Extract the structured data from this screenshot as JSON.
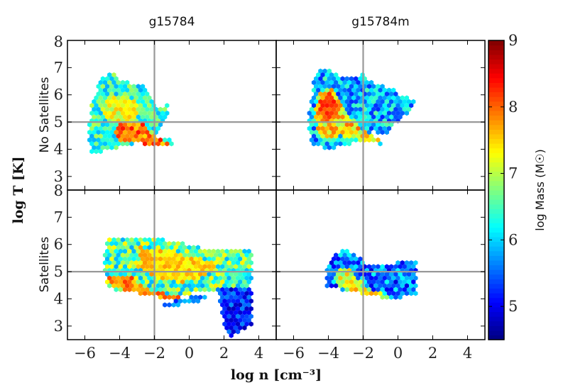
{
  "chart_data": {
    "type": "hexbin",
    "column_titles": [
      "g15784",
      "g15784m"
    ],
    "row_labels": [
      "No Satellites",
      "Satellites"
    ],
    "xlabel": "log n [cm⁻³]",
    "ylabel": "log T [K]",
    "colorbar_label": "log Mass (M☉)",
    "xlim": [
      -7,
      5
    ],
    "ylim": [
      2.5,
      8
    ],
    "x_ticks": [
      -6,
      -4,
      -2,
      0,
      2,
      4
    ],
    "x_tick_labels": [
      "−6",
      "−4",
      "−2",
      "0",
      "2",
      "4"
    ],
    "y_ticks": [
      3,
      4,
      5,
      6,
      7,
      8
    ],
    "y_tick_labels": [
      "3",
      "4",
      "5",
      "6",
      "7",
      "8"
    ],
    "colorbar_range": [
      4.5,
      9
    ],
    "colorbar_ticks": [
      5,
      6,
      7,
      8,
      9
    ],
    "colorbar_tick_labels": [
      "5",
      "6",
      "7",
      "8",
      "9"
    ],
    "colormap": "jet",
    "reference_lines": {
      "x": -2,
      "y": 5
    },
    "panels": [
      {
        "name": "g15784-no-satellites",
        "row": 0,
        "col": 0,
        "regions": [
          {
            "poly": [
              [
                -5.6,
                3.8
              ],
              [
                -5.8,
                4.6
              ],
              [
                -5.6,
                5.7
              ],
              [
                -5.2,
                6.4
              ],
              [
                -4.6,
                6.9
              ],
              [
                -4.0,
                6.6
              ],
              [
                -3.2,
                6.4
              ],
              [
                -2.6,
                6.3
              ],
              [
                -2.2,
                6.0
              ],
              [
                -1.8,
                5.5
              ],
              [
                -1.0,
                5.8
              ],
              [
                -1.4,
                5.0
              ],
              [
                -2.0,
                4.5
              ],
              [
                -1.2,
                4.4
              ],
              [
                -0.6,
                4.1
              ],
              [
                -1.6,
                4.2
              ],
              [
                -2.6,
                4.3
              ],
              [
                -3.6,
                4.1
              ],
              [
                -4.6,
                4.0
              ]
            ],
            "base": 6.4,
            "amp": 0.6
          },
          {
            "poly": [
              [
                -4.0,
                4.3
              ],
              [
                -4.4,
                4.7
              ],
              [
                -3.8,
                5.0
              ],
              [
                -2.8,
                5.0
              ],
              [
                -2.2,
                4.6
              ],
              [
                -1.4,
                4.3
              ],
              [
                -0.8,
                4.1
              ],
              [
                -1.8,
                4.1
              ],
              [
                -2.8,
                4.2
              ],
              [
                -3.4,
                4.3
              ]
            ],
            "base": 7.9,
            "amp": 0.5
          },
          {
            "poly": [
              [
                -4.6,
                4.9
              ],
              [
                -5.0,
                5.5
              ],
              [
                -4.5,
                6.0
              ],
              [
                -3.4,
                5.9
              ],
              [
                -2.8,
                5.5
              ],
              [
                -3.2,
                5.0
              ]
            ],
            "base": 7.2,
            "amp": 0.4
          }
        ]
      },
      {
        "name": "g15784m-no-satellites",
        "row": 0,
        "col": 1,
        "regions": [
          {
            "poly": [
              [
                -5.0,
                4.2
              ],
              [
                -5.2,
                5.0
              ],
              [
                -5.0,
                5.8
              ],
              [
                -4.8,
                6.6
              ],
              [
                -4.4,
                7.0
              ],
              [
                -3.6,
                6.8
              ],
              [
                -2.8,
                6.6
              ],
              [
                -2.0,
                6.8
              ],
              [
                -1.4,
                6.4
              ],
              [
                -0.6,
                6.3
              ],
              [
                0.2,
                6.0
              ],
              [
                1.1,
                5.8
              ],
              [
                0.4,
                5.2
              ],
              [
                -0.2,
                4.9
              ],
              [
                -0.8,
                4.5
              ],
              [
                -1.6,
                4.7
              ],
              [
                -1.0,
                4.2
              ],
              [
                -0.2,
                4.1
              ],
              [
                -1.2,
                4.2
              ],
              [
                -2.2,
                4.3
              ],
              [
                -3.2,
                4.1
              ],
              [
                -4.2,
                4.0
              ]
            ],
            "base": 5.9,
            "amp": 0.7
          },
          {
            "poly": [
              [
                -4.6,
                4.5
              ],
              [
                -4.8,
                5.3
              ],
              [
                -4.6,
                6.0
              ],
              [
                -4.0,
                6.3
              ],
              [
                -3.4,
                6.0
              ],
              [
                -3.0,
                5.5
              ],
              [
                -2.6,
                5.1
              ],
              [
                -2.0,
                4.7
              ],
              [
                -1.4,
                4.5
              ],
              [
                -0.6,
                4.2
              ],
              [
                -1.6,
                4.2
              ],
              [
                -2.6,
                4.4
              ],
              [
                -3.4,
                4.5
              ],
              [
                -4.0,
                4.4
              ]
            ],
            "base": 7.4,
            "amp": 0.6
          },
          {
            "poly": [
              [
                -4.4,
                5.0
              ],
              [
                -4.5,
                5.8
              ],
              [
                -3.9,
                6.1
              ],
              [
                -3.4,
                5.7
              ],
              [
                -3.6,
                5.1
              ]
            ],
            "base": 8.1,
            "amp": 0.3
          }
        ]
      },
      {
        "name": "g15784-satellites",
        "row": 1,
        "col": 0,
        "regions": [
          {
            "poly": [
              [
                -4.8,
                4.6
              ],
              [
                -4.9,
                5.6
              ],
              [
                -4.6,
                6.3
              ],
              [
                -3.6,
                6.2
              ],
              [
                -2.4,
                6.2
              ],
              [
                -1.6,
                6.2
              ],
              [
                -0.6,
                6.1
              ],
              [
                0.6,
                5.9
              ],
              [
                1.8,
                5.8
              ],
              [
                3.6,
                5.8
              ],
              [
                3.7,
                5.0
              ],
              [
                3.4,
                4.4
              ],
              [
                2.0,
                4.4
              ],
              [
                1.0,
                4.2
              ],
              [
                0.2,
                4.2
              ],
              [
                -0.6,
                4.1
              ],
              [
                -1.6,
                4.0
              ],
              [
                -2.6,
                4.2
              ],
              [
                -3.6,
                4.2
              ],
              [
                -4.4,
                4.3
              ]
            ],
            "base": 6.6,
            "amp": 0.8
          },
          {
            "poly": [
              [
                -3.0,
                5.2
              ],
              [
                -2.8,
                5.9
              ],
              [
                -1.0,
                5.7
              ],
              [
                0.6,
                5.5
              ],
              [
                1.6,
                5.3
              ],
              [
                1.0,
                4.8
              ],
              [
                -0.4,
                4.6
              ],
              [
                -1.8,
                4.7
              ]
            ],
            "base": 7.5,
            "amp": 0.3
          },
          {
            "poly": [
              [
                -4.6,
                4.5
              ],
              [
                -4.6,
                4.9
              ],
              [
                -3.6,
                4.9
              ],
              [
                -2.2,
                4.3
              ],
              [
                -0.8,
                4.1
              ],
              [
                0.2,
                4.0
              ],
              [
                -1.0,
                4.0
              ],
              [
                -2.4,
                4.1
              ],
              [
                -3.6,
                4.3
              ]
            ],
            "base": 7.9,
            "amp": 0.4
          },
          {
            "poly": [
              [
                1.6,
                4.4
              ],
              [
                1.8,
                3.6
              ],
              [
                2.0,
                3.0
              ],
              [
                2.4,
                2.6
              ],
              [
                3.0,
                2.8
              ],
              [
                3.6,
                3.0
              ],
              [
                3.7,
                3.6
              ],
              [
                3.6,
                4.4
              ]
            ],
            "base": 5.2,
            "amp": 0.5
          },
          {
            "poly": [
              [
                -1.6,
                3.8
              ],
              [
                -1.0,
                3.7
              ],
              [
                0.4,
                3.9
              ],
              [
                1.4,
                4.0
              ],
              [
                0.6,
                4.1
              ],
              [
                -0.6,
                4.0
              ]
            ],
            "base": 5.6,
            "amp": 0.4
          }
        ]
      },
      {
        "name": "g15784m-satellites",
        "row": 1,
        "col": 1,
        "regions": [
          {
            "poly": [
              [
                -4.2,
                4.4
              ],
              [
                -4.2,
                5.2
              ],
              [
                -3.6,
                5.6
              ],
              [
                -3.0,
                5.9
              ],
              [
                -2.4,
                5.6
              ],
              [
                -1.6,
                5.2
              ],
              [
                -0.8,
                5.2
              ],
              [
                0.2,
                5.4
              ],
              [
                1.1,
                5.4
              ],
              [
                1.0,
                4.6
              ],
              [
                1.1,
                4.2
              ],
              [
                0.0,
                4.0
              ],
              [
                -1.2,
                4.1
              ],
              [
                -2.2,
                4.2
              ],
              [
                -3.0,
                4.3
              ],
              [
                -3.8,
                4.4
              ]
            ],
            "base": 5.6,
            "amp": 0.7
          },
          {
            "poly": [
              [
                -3.6,
                4.5
              ],
              [
                -3.6,
                5.0
              ],
              [
                -3.0,
                5.2
              ],
              [
                -2.4,
                4.8
              ],
              [
                -1.8,
                4.4
              ],
              [
                -1.0,
                4.2
              ],
              [
                -0.2,
                4.0
              ],
              [
                0.6,
                3.9
              ],
              [
                -0.4,
                4.0
              ],
              [
                -1.4,
                4.1
              ],
              [
                -2.2,
                4.2
              ],
              [
                -3.0,
                4.3
              ]
            ],
            "base": 7.2,
            "amp": 0.6
          }
        ]
      }
    ]
  }
}
